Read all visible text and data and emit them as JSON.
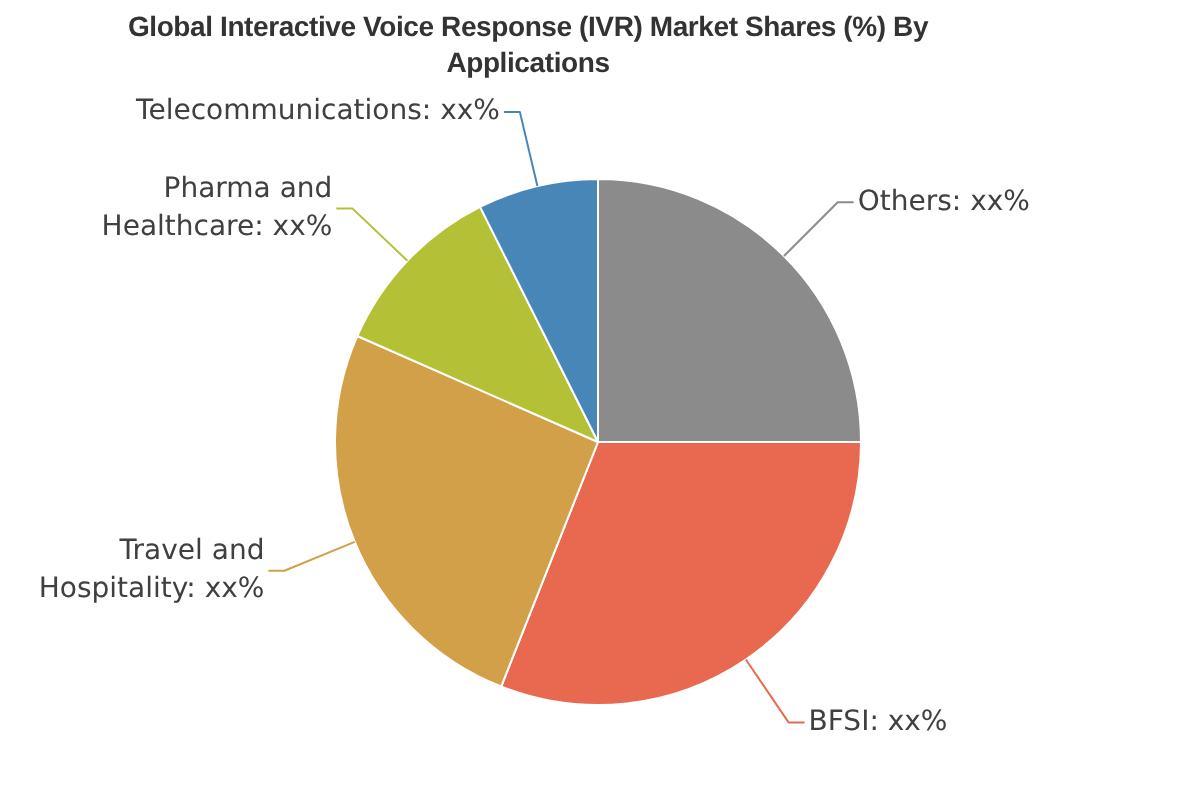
{
  "chart_data": {
    "type": "pie",
    "title": "Global Interactive Voice Response (IVR) Market Shares (%) By Applications",
    "categories": [
      "Others",
      "BFSI",
      "Travel and Hospitality",
      "Pharma and Healthcare",
      "Telecommunications"
    ],
    "values": [
      25,
      31,
      25.6,
      11,
      7.4
    ],
    "colors": [
      "#8b8b8b",
      "#e8694f",
      "#d2a048",
      "#b4c136",
      "#4886b7"
    ],
    "value_labels": [
      "xx%",
      "xx%",
      "xx%",
      "xx%",
      "xx%"
    ]
  }
}
